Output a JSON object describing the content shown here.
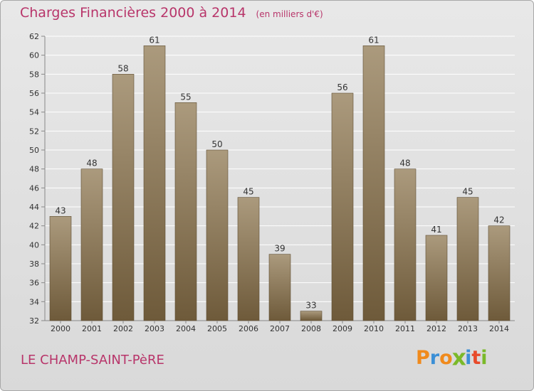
{
  "header": {
    "title": "Charges Financières 2000 à 2014",
    "unit": "(en milliers d'€)"
  },
  "footer": {
    "commune": "LE CHAMP-SAINT-PèRE",
    "logo_letters": [
      "P",
      "r",
      "o",
      "x",
      "i",
      "t",
      "i"
    ],
    "logo_colors": [
      "#f08a1c",
      "#3b8fd6",
      "#f08a1c",
      "#7ab929",
      "#3b8fd6",
      "#e84a2a",
      "#7ab929"
    ]
  },
  "colors": {
    "bar_light": "#ab9a7d",
    "bar_dark": "#6e5a3a",
    "title": "#b8356a",
    "grid": "#ffffff",
    "axis_text": "#333333"
  },
  "chart_data": {
    "type": "bar",
    "categories": [
      "2000",
      "2001",
      "2002",
      "2003",
      "2004",
      "2005",
      "2006",
      "2007",
      "2008",
      "2009",
      "2010",
      "2011",
      "2012",
      "2013",
      "2014"
    ],
    "values": [
      43,
      48,
      58,
      61,
      55,
      50,
      45,
      39,
      33,
      56,
      61,
      48,
      41,
      45,
      42
    ],
    "title": "Charges Financières 2000 à 2014",
    "subtitle": "(en milliers d'€)",
    "ylim": [
      32,
      62
    ],
    "yticks": [
      32,
      34,
      36,
      38,
      40,
      42,
      44,
      46,
      48,
      50,
      52,
      54,
      56,
      58,
      60,
      62
    ],
    "grid": true,
    "data_labels": true
  }
}
